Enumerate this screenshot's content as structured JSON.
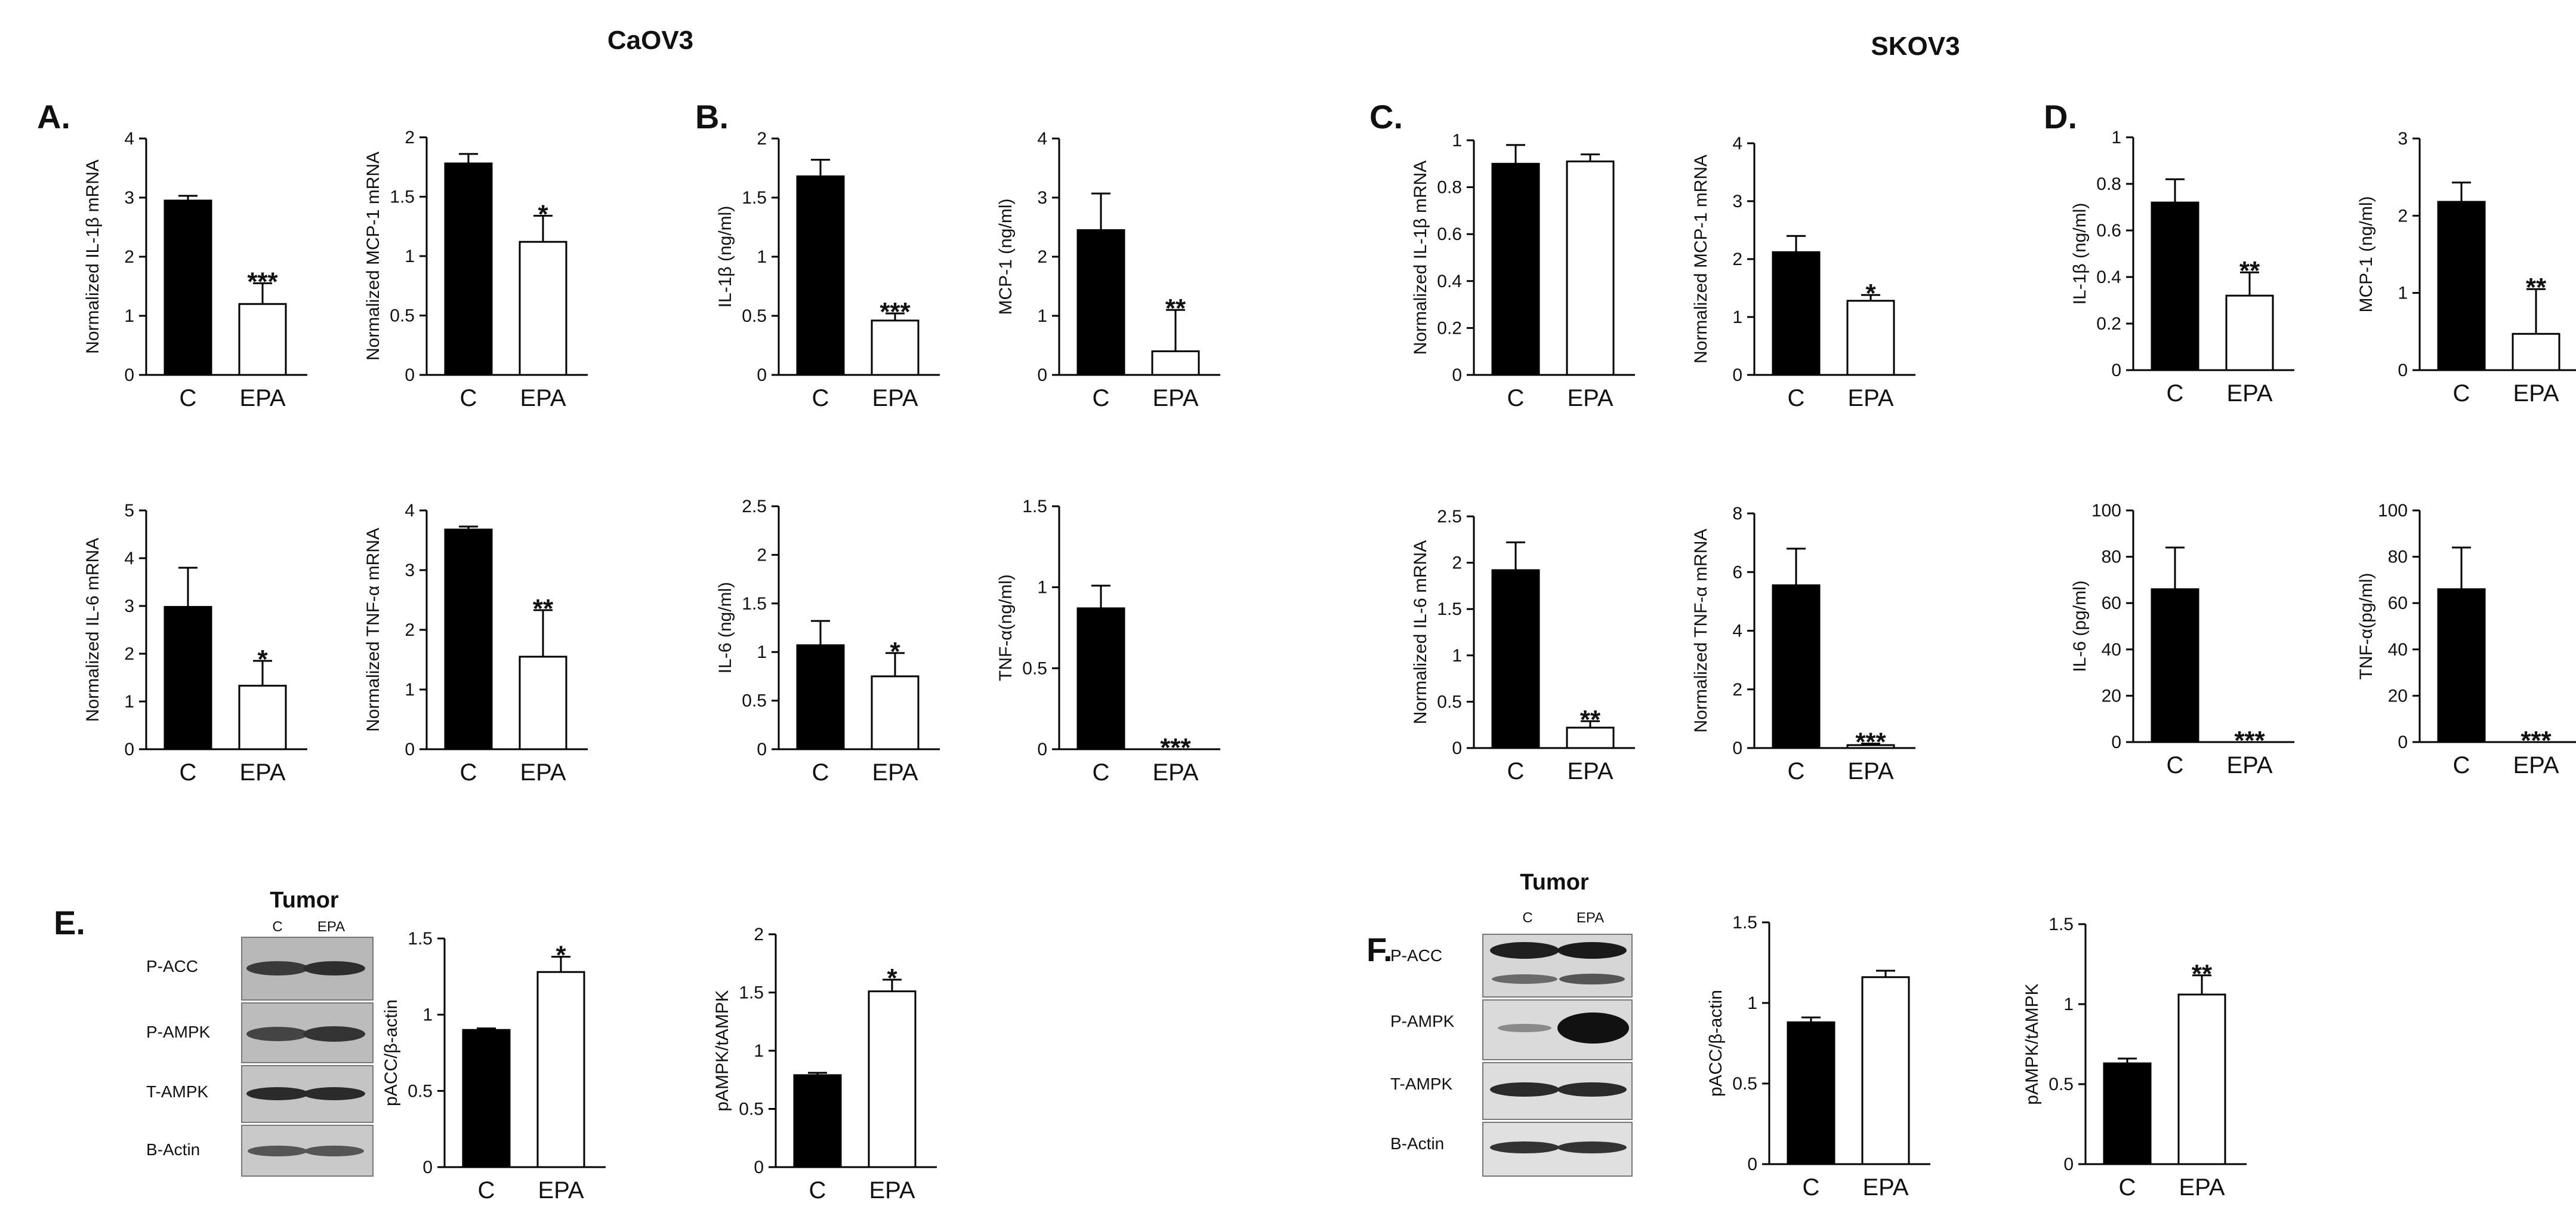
{
  "titles": {
    "caov3": "CaOV3",
    "skov3": "SKOV3"
  },
  "panel_letters": [
    "A.",
    "B.",
    "C.",
    "D.",
    "E.",
    "F."
  ],
  "western_blots": [
    {
      "panel": "E",
      "title": "Tumor",
      "columns": [
        "C",
        "EPA"
      ],
      "rows": [
        "P-ACC",
        "P-AMPK",
        "T-AMPK",
        "B-Actin"
      ]
    },
    {
      "panel": "F",
      "title": "Tumor",
      "columns": [
        "C",
        "EPA"
      ],
      "rows": [
        "P-ACC",
        "P-AMPK",
        "T-AMPK",
        "B-Actin"
      ]
    }
  ],
  "colors": {
    "control_fill": "#000000",
    "epa_fill": "#ffffff",
    "stroke": "#000000"
  },
  "chart_data": [
    {
      "type": "bar",
      "panel": "A",
      "cell": "CaOV3",
      "ylabel": "Normalized IL-1β mRNA",
      "categories": [
        "C",
        "EPA"
      ],
      "values": [
        2.95,
        1.2
      ],
      "errors": [
        0.08,
        0.35
      ],
      "significance": "***",
      "ylim": [
        0,
        4
      ],
      "ticks": [
        "0",
        "1",
        "2",
        "3",
        "4"
      ]
    },
    {
      "type": "bar",
      "panel": "A",
      "cell": "CaOV3",
      "ylabel": "Normalized MCP-1 mRNA",
      "categories": [
        "C",
        "EPA"
      ],
      "values": [
        1.78,
        1.12
      ],
      "errors": [
        0.08,
        0.22
      ],
      "significance": "*",
      "ylim": [
        0,
        2
      ],
      "ticks": [
        "0",
        "0.5",
        "1",
        "1.5",
        "2"
      ]
    },
    {
      "type": "bar",
      "panel": "B",
      "cell": "CaOV3",
      "ylabel": "IL-1β (ng/ml)",
      "categories": [
        "C",
        "EPA"
      ],
      "values": [
        1.68,
        0.46
      ],
      "errors": [
        0.14,
        0.06
      ],
      "significance": "***",
      "ylim": [
        0,
        2
      ],
      "ticks": [
        "0",
        "0.5",
        "1",
        "1.5",
        "2"
      ]
    },
    {
      "type": "bar",
      "panel": "B",
      "cell": "CaOV3",
      "ylabel": "MCP-1 (ng/ml)",
      "categories": [
        "C",
        "EPA"
      ],
      "values": [
        2.45,
        0.4
      ],
      "errors": [
        0.62,
        0.7
      ],
      "significance": "**",
      "ylim": [
        0,
        4
      ],
      "ticks": [
        "0",
        "1",
        "2",
        "3",
        "4"
      ]
    },
    {
      "type": "bar",
      "panel": "A",
      "cell": "CaOV3",
      "ylabel": "Normalized IL-6 mRNA",
      "categories": [
        "C",
        "EPA"
      ],
      "values": [
        2.98,
        1.33
      ],
      "errors": [
        0.82,
        0.52
      ],
      "significance": "*",
      "ylim": [
        0,
        5
      ],
      "ticks": [
        "0",
        "1",
        "2",
        "3",
        "4",
        "5"
      ]
    },
    {
      "type": "bar",
      "panel": "A",
      "cell": "CaOV3",
      "ylabel": "Normalized TNF-α mRNA",
      "categories": [
        "C",
        "EPA"
      ],
      "values": [
        3.68,
        1.55
      ],
      "errors": [
        0.05,
        0.78
      ],
      "significance": "**",
      "ylim": [
        0,
        4
      ],
      "ticks": [
        "0",
        "1",
        "2",
        "3",
        "4"
      ]
    },
    {
      "type": "bar",
      "panel": "B",
      "cell": "CaOV3",
      "ylabel": "IL-6 (ng/ml)",
      "categories": [
        "C",
        "EPA"
      ],
      "values": [
        1.07,
        0.75
      ],
      "errors": [
        0.25,
        0.24
      ],
      "significance": "*",
      "ylim": [
        0,
        2.5
      ],
      "ticks": [
        "0",
        "0.5",
        "1",
        "1.5",
        "2",
        "2.5"
      ]
    },
    {
      "type": "bar",
      "panel": "B",
      "cell": "CaOV3",
      "ylabel": "TNF-α(ng/ml)",
      "categories": [
        "C",
        "EPA"
      ],
      "values": [
        0.87,
        0.0
      ],
      "errors": [
        0.14,
        0.0
      ],
      "significance": "***",
      "ylim": [
        0,
        1.5
      ],
      "ticks": [
        "0",
        "0.5",
        "1",
        "1.5"
      ]
    },
    {
      "type": "bar",
      "panel": "C",
      "cell": "SKOV3",
      "ylabel": "Normalized IL-1β mRNA",
      "categories": [
        "C",
        "EPA"
      ],
      "values": [
        0.9,
        0.91
      ],
      "errors": [
        0.08,
        0.03
      ],
      "significance": "",
      "ylim": [
        0,
        1
      ],
      "ticks": [
        "0",
        "0.2",
        "0.4",
        "0.6",
        "0.8",
        "1"
      ]
    },
    {
      "type": "bar",
      "panel": "C",
      "cell": "SKOV3",
      "ylabel": "Normalized MCP-1 mRNA",
      "categories": [
        "C",
        "EPA"
      ],
      "values": [
        2.12,
        1.28
      ],
      "errors": [
        0.28,
        0.1
      ],
      "significance": "*",
      "ylim": [
        0,
        4
      ],
      "ticks": [
        "0",
        "1",
        "2",
        "3",
        "4"
      ]
    },
    {
      "type": "bar",
      "panel": "D",
      "cell": "SKOV3",
      "ylabel": "IL-1β (ng/ml)",
      "categories": [
        "C",
        "EPA"
      ],
      "values": [
        0.72,
        0.32
      ],
      "errors": [
        0.1,
        0.1
      ],
      "significance": "**",
      "ylim": [
        0,
        1
      ],
      "ticks": [
        "0",
        "0.2",
        "0.4",
        "0.6",
        "0.8",
        "1"
      ]
    },
    {
      "type": "bar",
      "panel": "D",
      "cell": "SKOV3",
      "ylabel": "MCP-1 (ng/ml)",
      "categories": [
        "C",
        "EPA"
      ],
      "values": [
        2.18,
        0.47
      ],
      "errors": [
        0.25,
        0.58
      ],
      "significance": "**",
      "ylim": [
        0,
        3
      ],
      "ticks": [
        "0",
        "1",
        "2",
        "3"
      ]
    },
    {
      "type": "bar",
      "panel": "C",
      "cell": "SKOV3",
      "ylabel": "Normalized IL-6 mRNA",
      "categories": [
        "C",
        "EPA"
      ],
      "values": [
        1.92,
        0.22
      ],
      "errors": [
        0.3,
        0.07
      ],
      "significance": "**",
      "ylim": [
        0,
        2.5
      ],
      "ticks": [
        "0",
        "0.5",
        "1",
        "1.5",
        "2",
        "2.5"
      ]
    },
    {
      "type": "bar",
      "panel": "C",
      "cell": "SKOV3",
      "ylabel": "Normalized TNF-α mRNA",
      "categories": [
        "C",
        "EPA"
      ],
      "values": [
        5.55,
        0.1
      ],
      "errors": [
        1.25,
        0.05
      ],
      "significance": "***",
      "ylim": [
        0,
        8
      ],
      "ticks": [
        "0",
        "2",
        "4",
        "6",
        "8"
      ]
    },
    {
      "type": "bar",
      "panel": "D",
      "cell": "SKOV3",
      "ylabel": "IL-6 (pg/ml)",
      "categories": [
        "C",
        "EPA"
      ],
      "values": [
        66,
        0
      ],
      "errors": [
        18,
        0
      ],
      "significance": "***",
      "ylim": [
        0,
        100
      ],
      "ticks": [
        "0",
        "20",
        "40",
        "60",
        "80",
        "100"
      ]
    },
    {
      "type": "bar",
      "panel": "D",
      "cell": "SKOV3",
      "ylabel": "TNF-α(pg/ml)",
      "categories": [
        "C",
        "EPA"
      ],
      "values": [
        66,
        0
      ],
      "errors": [
        18,
        0
      ],
      "significance": "***",
      "ylim": [
        0,
        100
      ],
      "ticks": [
        "0",
        "20",
        "40",
        "60",
        "80",
        "100"
      ]
    },
    {
      "type": "bar",
      "panel": "E",
      "cell": "CaOV3",
      "ylabel": "pACC/β-actin",
      "categories": [
        "C",
        "EPA"
      ],
      "values": [
        0.9,
        1.28
      ],
      "errors": [
        0.01,
        0.1
      ],
      "significance": "*",
      "ylim": [
        0,
        1.5
      ],
      "ticks": [
        "0",
        "0.5",
        "1",
        "1.5"
      ]
    },
    {
      "type": "bar",
      "panel": "E",
      "cell": "CaOV3",
      "ylabel": "pAMPK/tAMPK",
      "categories": [
        "C",
        "EPA"
      ],
      "values": [
        0.79,
        1.51
      ],
      "errors": [
        0.02,
        0.1
      ],
      "significance": "*",
      "ylim": [
        0,
        2
      ],
      "ticks": [
        "0",
        "0.5",
        "1",
        "1.5",
        "2"
      ]
    },
    {
      "type": "bar",
      "panel": "F",
      "cell": "SKOV3",
      "ylabel": "pACC/β-actin",
      "categories": [
        "C",
        "EPA"
      ],
      "values": [
        0.88,
        1.16
      ],
      "errors": [
        0.03,
        0.04
      ],
      "significance": "",
      "ylim": [
        0,
        1.5
      ],
      "ticks": [
        "0",
        "0.5",
        "1",
        "1.5"
      ]
    },
    {
      "type": "bar",
      "panel": "F",
      "cell": "SKOV3",
      "ylabel": "pAMPK/tAMPK",
      "categories": [
        "C",
        "EPA"
      ],
      "values": [
        0.63,
        1.06
      ],
      "errors": [
        0.03,
        0.12
      ],
      "significance": "**",
      "ylim": [
        0,
        1.5
      ],
      "ticks": [
        "0",
        "0.5",
        "1",
        "1.5"
      ]
    }
  ]
}
